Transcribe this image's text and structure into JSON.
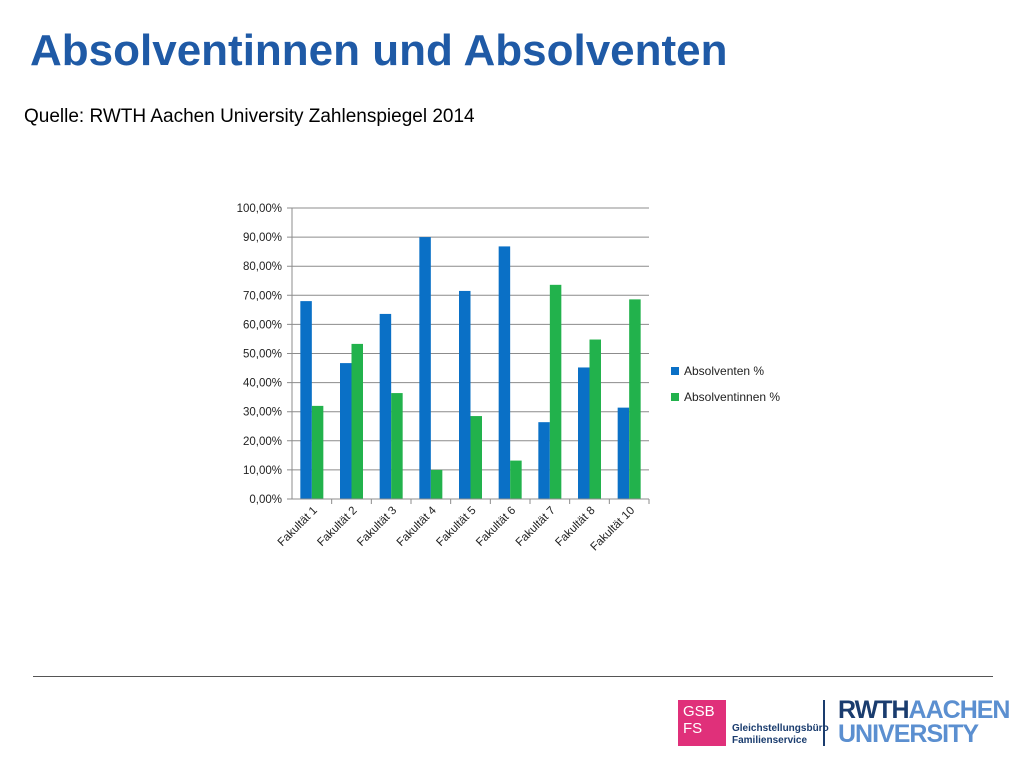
{
  "slide": {
    "title": "Absolventinnen und Absolventen",
    "subtitle": "Quelle: RWTH Aachen University Zahlenspiegel 2014"
  },
  "chart_data": {
    "type": "bar",
    "categories": [
      "Fakultät 1",
      "Fakultät 2",
      "Fakultät 3",
      "Fakultät 4",
      "Fakultät 5",
      "Fakultät 6",
      "Fakultät 7",
      "Fakultät 8",
      "Fakultät 10"
    ],
    "series": [
      {
        "name": "Absolventen %",
        "color": "#0a70c6",
        "values": [
          68.0,
          46.7,
          63.6,
          90.0,
          71.5,
          86.8,
          26.4,
          45.2,
          31.4
        ]
      },
      {
        "name": "Absolventinnen %",
        "color": "#22b24c",
        "values": [
          32.0,
          53.3,
          36.4,
          10.0,
          28.5,
          13.2,
          73.6,
          54.8,
          68.6
        ]
      }
    ],
    "ylim": [
      0,
      100
    ],
    "y_ticks": [
      "0,00%",
      "10,00%",
      "20,00%",
      "30,00%",
      "40,00%",
      "50,00%",
      "60,00%",
      "70,00%",
      "80,00%",
      "90,00%",
      "100,00%"
    ],
    "title": "",
    "xlabel": "",
    "ylabel": "",
    "grid": true,
    "legend": "right"
  },
  "footer": {
    "gsb_logo_lines": [
      "GSB",
      "FS"
    ],
    "gsb_text_lines": [
      "Gleichstellungsbüro",
      "Familienservice"
    ],
    "rwth_line1_a": "RWTH",
    "rwth_line1_b": "AACHEN",
    "rwth_line2": "UNIVERSITY"
  }
}
